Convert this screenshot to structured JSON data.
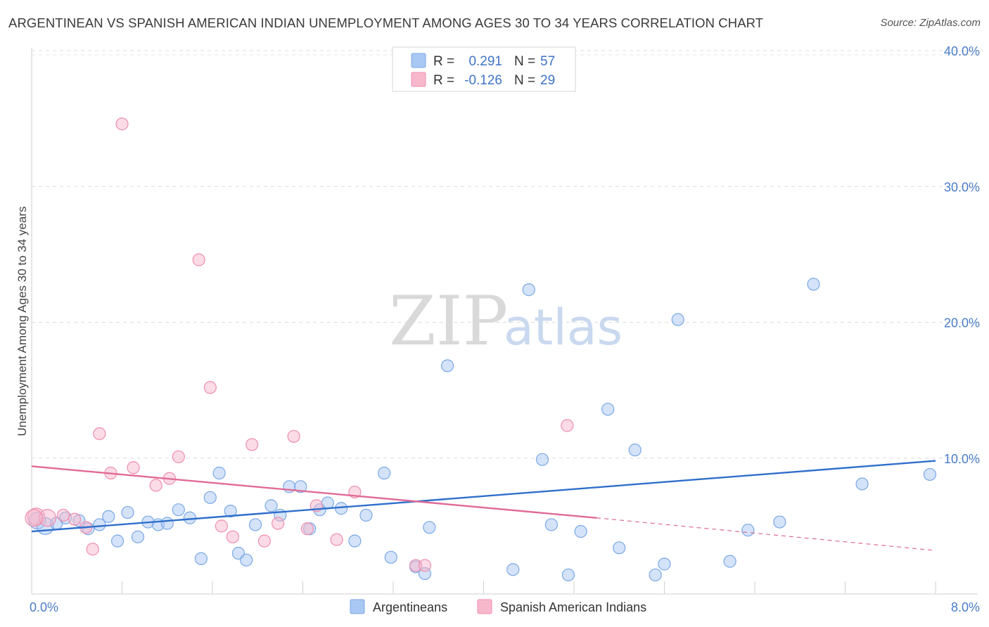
{
  "header": {
    "title": "ARGENTINEAN VS SPANISH AMERICAN INDIAN UNEMPLOYMENT AMONG AGES 30 TO 34 YEARS CORRELATION CHART",
    "source": "Source: ZipAtlas.com"
  },
  "watermark": {
    "zip": "ZIP",
    "atlas": "atlas"
  },
  "legend": {
    "r_label": "R =",
    "n_label": "N =",
    "rows": [
      {
        "r": "0.291",
        "n": "57",
        "color": "#a9c8f3"
      },
      {
        "r": "-0.126",
        "n": "29",
        "color": "#f7b8cc"
      }
    ]
  },
  "chart_data": {
    "type": "scatter",
    "ylabel": "Unemployment Among Ages 30 to 34 years",
    "xlim": [
      0,
      8
    ],
    "ylim": [
      0,
      40
    ],
    "x_tick_labels": [
      "0.0%",
      "8.0%"
    ],
    "y_ticks": [
      10,
      20,
      30,
      40
    ],
    "y_tick_labels": [
      "10.0%",
      "20.0%",
      "30.0%",
      "40.0%"
    ],
    "grid": true,
    "legend_position": "top-center",
    "series": [
      {
        "name": "Argentineans",
        "color": "#7aa8e6",
        "fill": "#a9c8f3",
        "line_color": "#2f6fcb",
        "trend": {
          "x": [
            0,
            8
          ],
          "y": [
            4.6,
            9.8
          ]
        },
        "points": [
          [
            0.05,
            5.4
          ],
          [
            0.12,
            5.0
          ],
          [
            0.22,
            5.2
          ],
          [
            0.3,
            5.6
          ],
          [
            0.42,
            5.4
          ],
          [
            0.5,
            4.8
          ],
          [
            0.6,
            5.1
          ],
          [
            0.68,
            5.7
          ],
          [
            0.76,
            3.9
          ],
          [
            0.85,
            6.0
          ],
          [
            0.94,
            4.2
          ],
          [
            1.03,
            5.3
          ],
          [
            1.12,
            5.1
          ],
          [
            1.2,
            5.2
          ],
          [
            1.3,
            6.2
          ],
          [
            1.4,
            5.6
          ],
          [
            1.5,
            2.6
          ],
          [
            1.58,
            7.1
          ],
          [
            1.66,
            8.9
          ],
          [
            1.76,
            6.1
          ],
          [
            1.83,
            3.0
          ],
          [
            1.9,
            2.5
          ],
          [
            1.98,
            5.1
          ],
          [
            2.12,
            6.5
          ],
          [
            2.2,
            5.8
          ],
          [
            2.28,
            7.9
          ],
          [
            2.38,
            7.9
          ],
          [
            2.46,
            4.8
          ],
          [
            2.55,
            6.2
          ],
          [
            2.62,
            6.7
          ],
          [
            2.74,
            6.3
          ],
          [
            2.86,
            3.9
          ],
          [
            2.96,
            5.8
          ],
          [
            3.12,
            8.9
          ],
          [
            3.18,
            2.7
          ],
          [
            3.4,
            2.0
          ],
          [
            3.48,
            1.5
          ],
          [
            3.52,
            4.9
          ],
          [
            3.68,
            16.8
          ],
          [
            4.26,
            1.8
          ],
          [
            4.4,
            22.4
          ],
          [
            4.52,
            9.9
          ],
          [
            4.6,
            5.1
          ],
          [
            4.75,
            1.4
          ],
          [
            4.86,
            4.6
          ],
          [
            5.1,
            13.6
          ],
          [
            5.2,
            3.4
          ],
          [
            5.34,
            10.6
          ],
          [
            5.52,
            1.4
          ],
          [
            5.6,
            2.2
          ],
          [
            5.72,
            20.2
          ],
          [
            6.18,
            2.4
          ],
          [
            6.34,
            4.7
          ],
          [
            6.62,
            5.3
          ],
          [
            6.92,
            22.8
          ],
          [
            7.35,
            8.1
          ],
          [
            7.95,
            8.8
          ]
        ]
      },
      {
        "name": "Spanish American Indians",
        "color": "#ef8eae",
        "fill": "#f7b8cc",
        "line_color": "#e06a96",
        "trend": {
          "x": [
            0,
            5.0
          ],
          "y": [
            9.4,
            5.6
          ]
        },
        "trend_dashed": {
          "x": [
            5.0,
            8
          ],
          "y": [
            5.6,
            3.2
          ]
        },
        "points": [
          [
            0.04,
            5.7
          ],
          [
            0.14,
            5.6
          ],
          [
            0.28,
            5.8
          ],
          [
            0.38,
            5.5
          ],
          [
            0.48,
            4.9
          ],
          [
            0.54,
            3.3
          ],
          [
            0.6,
            11.8
          ],
          [
            0.7,
            8.9
          ],
          [
            0.8,
            34.6
          ],
          [
            0.9,
            9.3
          ],
          [
            1.1,
            8.0
          ],
          [
            1.22,
            8.5
          ],
          [
            1.3,
            10.1
          ],
          [
            1.48,
            24.6
          ],
          [
            1.58,
            15.2
          ],
          [
            1.68,
            5.0
          ],
          [
            1.78,
            4.2
          ],
          [
            1.95,
            11.0
          ],
          [
            2.06,
            3.9
          ],
          [
            2.18,
            5.2
          ],
          [
            2.32,
            11.6
          ],
          [
            2.44,
            4.8
          ],
          [
            2.52,
            6.5
          ],
          [
            2.7,
            4.0
          ],
          [
            2.86,
            7.5
          ],
          [
            3.4,
            2.1
          ],
          [
            3.48,
            2.1
          ],
          [
            4.74,
            12.4
          ],
          [
            0.02,
            5.6
          ]
        ]
      }
    ]
  }
}
